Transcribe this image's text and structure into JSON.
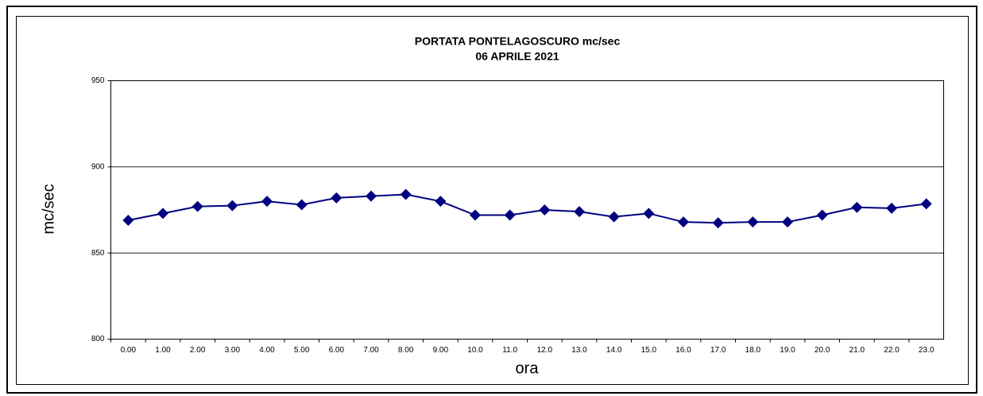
{
  "chart_data": {
    "type": "line",
    "title": "PORTATA PONTELAGOSCURO mc/sec",
    "subtitle": "06 APRILE 2021",
    "x_label": "ora",
    "y_label": "mc/sec",
    "categories": [
      "0.00",
      "1.00",
      "2.00",
      "3.00",
      "4.00",
      "5.00",
      "6.00",
      "7.00",
      "8.00",
      "9.00",
      "10.0",
      "11.0",
      "12.0",
      "13.0",
      "14.0",
      "15.0",
      "16.0",
      "17.0",
      "18.0",
      "19.0",
      "20.0",
      "21.0",
      "22.0",
      "23.0"
    ],
    "series": [
      {
        "name": "portata",
        "color": "#000080",
        "values": [
          869,
          873,
          877,
          877.5,
          880,
          878,
          882,
          883,
          884,
          880,
          872,
          872,
          875,
          874,
          871,
          873,
          868,
          867.5,
          868,
          868,
          872,
          876.5,
          876,
          878.5
        ]
      }
    ],
    "ylim": [
      800,
      950
    ],
    "yticks": [
      800,
      850,
      900,
      950
    ],
    "grid": true
  }
}
